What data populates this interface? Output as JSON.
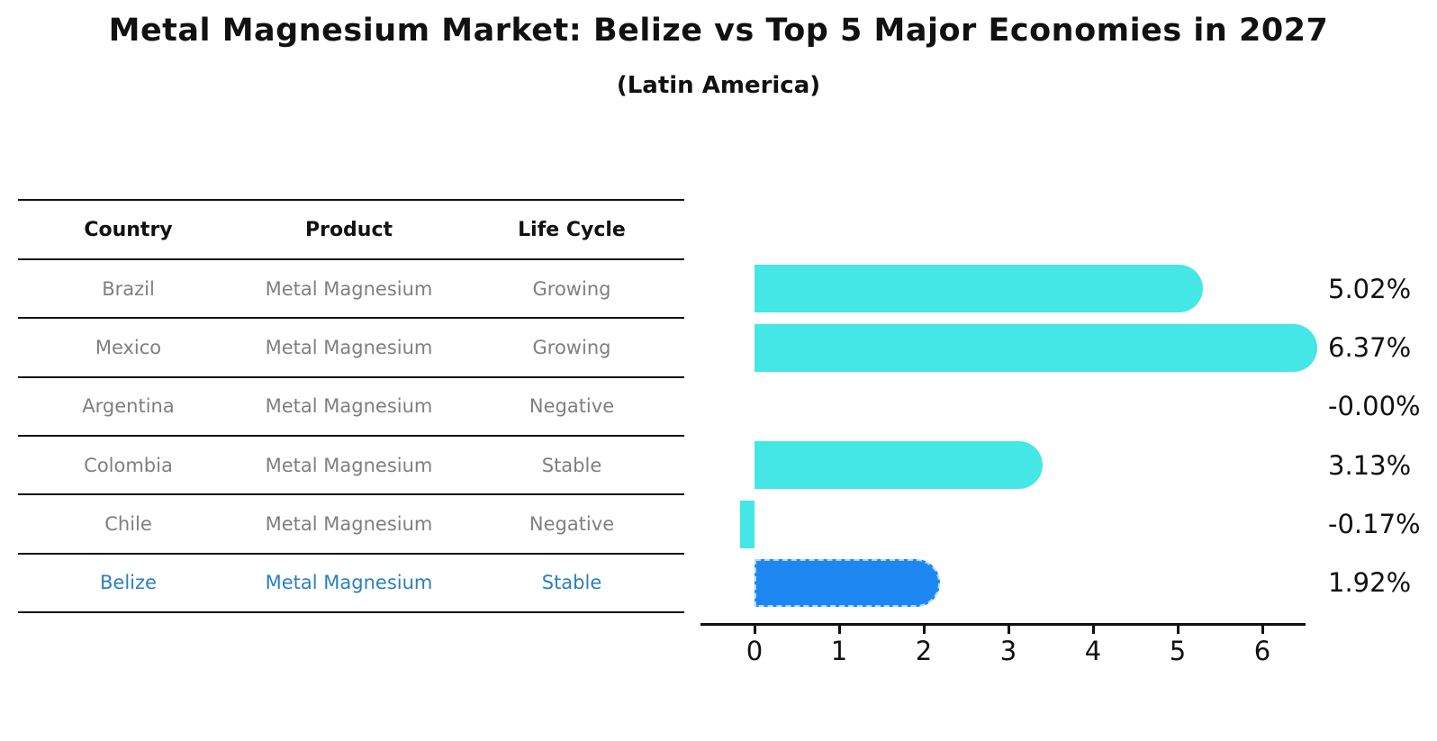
{
  "title": "Metal Magnesium Market: Belize vs Top 5 Major Economies in 2027",
  "subtitle": "(Latin America)",
  "table": {
    "headers": [
      "Country",
      "Product",
      "Life Cycle"
    ],
    "rows": [
      {
        "country": "Brazil",
        "product": "Metal Magnesium",
        "life_cycle": "Growing",
        "highlight": false
      },
      {
        "country": "Mexico",
        "product": "Metal Magnesium",
        "life_cycle": "Growing",
        "highlight": false
      },
      {
        "country": "Argentina",
        "product": "Metal Magnesium",
        "life_cycle": "Negative",
        "highlight": false
      },
      {
        "country": "Colombia",
        "product": "Metal Magnesium",
        "life_cycle": "Stable",
        "highlight": false
      },
      {
        "country": "Chile",
        "product": "Metal Magnesium",
        "life_cycle": "Negative",
        "highlight": false
      },
      {
        "country": "Belize",
        "product": "Metal Magnesium",
        "life_cycle": "Stable",
        "highlight": true
      }
    ]
  },
  "chart_data": {
    "type": "bar",
    "orientation": "horizontal",
    "categories": [
      "Brazil",
      "Mexico",
      "Argentina",
      "Colombia",
      "Chile",
      "Belize"
    ],
    "values": [
      5.02,
      6.37,
      -0.0,
      3.13,
      -0.17,
      1.92
    ],
    "value_labels": [
      "5.02%",
      "6.37%",
      "-0.00%",
      "3.13%",
      "-0.17%",
      "1.92%"
    ],
    "x_ticks": [
      0,
      1,
      2,
      3,
      4,
      5,
      6
    ],
    "xlim": [
      -0.6,
      6.5
    ],
    "grid": "off",
    "legend": "none",
    "highlight_category": "Belize",
    "bar_color": "#45e6e6",
    "highlight_bar_color": "#1e86f0",
    "highlight_text_color": "#2b7fc0",
    "value_label_color": "#111111",
    "axis_color": "#111111",
    "table_text_color": "#7f7f7f"
  }
}
